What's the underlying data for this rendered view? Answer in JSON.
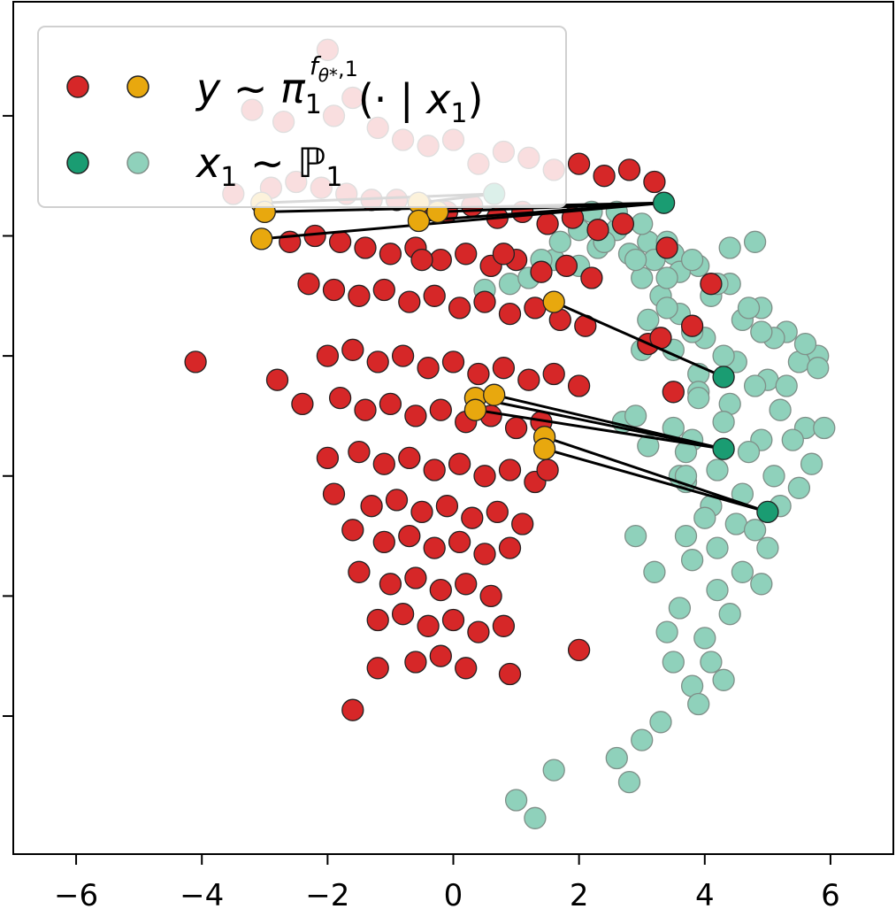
{
  "chart_data": {
    "type": "scatter",
    "title": "",
    "xlabel": "",
    "ylabel": "",
    "xlim": [
      -7,
      7
    ],
    "ylim": [
      -7.3,
      6.9
    ],
    "xticks": [
      -6,
      -4,
      -2,
      0,
      2,
      4,
      6
    ],
    "xtick_labels": [
      "−6",
      "−4",
      "−2",
      "0",
      "2",
      "4",
      "6"
    ],
    "yticks": [
      5,
      3,
      1,
      -1,
      -3,
      -5
    ],
    "ytick_labels": [
      "",
      "",
      "",
      "",
      "",
      ""
    ],
    "grid": false,
    "legend_position": "top-left",
    "legend": [
      {
        "label": "y ~ π₁^{fθ*,1}(· | x₁)",
        "colors": [
          "#d62728",
          "#e8a80e"
        ]
      },
      {
        "label": "x₁ ~ ℙ1",
        "colors": [
          "#1a9c72",
          "#8fd1bb"
        ]
      }
    ],
    "colors": {
      "target_red": "#d62728",
      "target_highlight": "#e8a80e",
      "source_highlight": "#1a9c72",
      "source_light": "#8fd1bb",
      "edge_dark": "#222222",
      "edge_light": "#7f8f88"
    },
    "series": [
      {
        "name": "x₁ ~ ℙ1",
        "role": "source",
        "x": [
          1.9,
          1.6,
          2.3,
          2.2,
          2.6,
          3.1,
          3.5,
          3.9,
          4.4,
          4.9,
          5.3,
          5.8,
          4.6,
          4.1,
          3.6,
          3.2,
          2.8,
          2.4,
          2.0,
          2.6,
          3.0,
          3.4,
          3.8,
          4.2,
          4.7,
          5.1,
          5.5,
          5.0,
          4.5,
          4.0,
          3.6,
          3.3,
          3.0,
          3.4,
          3.8,
          4.3,
          4.8,
          5.2,
          5.6,
          4.9,
          4.4,
          3.9,
          3.5,
          3.9,
          4.3,
          4.7,
          5.1,
          4.6,
          4.2,
          3.8,
          4.5,
          5.0,
          4.1,
          3.7,
          4.6,
          4.2,
          3.8,
          4.4,
          4.0,
          3.6,
          4.1,
          3.8,
          3.5,
          3.9,
          4.3,
          3.4,
          3.2,
          2.9,
          3.7,
          4.0,
          3.6,
          3.1,
          2.7,
          3.5,
          3.9,
          2.4,
          2.0,
          1.7,
          1.4,
          0.5,
          0.9,
          1.2,
          2.9,
          3.1,
          4.4,
          4.8,
          5.6,
          5.3,
          4.9,
          3.4,
          3.0,
          2.9,
          3.7,
          4.2,
          3.3,
          3.0,
          2.6,
          2.8,
          1.6,
          1.0,
          1.3,
          5.8,
          5.9,
          5.4,
          5.7,
          5.5,
          5.2,
          4.8,
          3.7,
          4.9
        ],
        "y": [
          3.3,
          2.6,
          2.8,
          3.4,
          3.1,
          2.9,
          2.7,
          2.5,
          2.2,
          1.8,
          1.4,
          1.0,
          1.6,
          2.0,
          2.4,
          2.6,
          2.7,
          2.9,
          3.1,
          3.4,
          3.2,
          2.9,
          2.6,
          2.2,
          1.8,
          1.3,
          0.9,
          0.6,
          0.9,
          1.3,
          1.7,
          2.0,
          2.3,
          1.8,
          1.4,
          1.0,
          0.5,
          0.1,
          -0.2,
          -0.4,
          0.2,
          0.7,
          1.1,
          0.4,
          -0.1,
          -0.6,
          -1.0,
          -1.3,
          -0.9,
          -0.4,
          -1.8,
          -2.2,
          -1.5,
          -1.1,
          -2.6,
          -2.9,
          -2.4,
          -3.3,
          -3.7,
          -3.2,
          -4.1,
          -4.5,
          -4.1,
          -4.8,
          -4.4,
          -3.6,
          -2.6,
          -2.0,
          -2.0,
          -1.7,
          -1.0,
          -0.5,
          -0.1,
          -0.2,
          0.3,
          2.9,
          2.5,
          2.9,
          2.6,
          2.1,
          2.2,
          2.3,
          2.6,
          1.6,
          2.8,
          2.9,
          1.2,
          0.5,
          1.4,
          2.3,
          1.1,
          0.0,
          -0.6,
          -2.2,
          -5.1,
          -5.4,
          -5.7,
          -6.1,
          -5.9,
          -6.4,
          -6.7,
          0.8,
          -0.2,
          -0.4,
          -0.8,
          -1.2,
          -1.5,
          -1.9,
          -1.0,
          -2.8
        ]
      },
      {
        "name": "y ~ π₁^{fθ*,1}(· | x₁)",
        "role": "target",
        "x": [
          -2.0,
          -1.6,
          -3.2,
          -1.9,
          -2.7,
          -1.2,
          -0.8,
          -0.4,
          0.0,
          0.4,
          0.8,
          1.2,
          1.6,
          2.0,
          2.4,
          2.8,
          3.2,
          -3.5,
          -2.9,
          -2.5,
          -2.1,
          -1.7,
          -1.3,
          -0.9,
          -0.5,
          -0.1,
          0.3,
          0.7,
          1.1,
          1.5,
          1.9,
          2.3,
          2.7,
          -2.6,
          -2.2,
          -1.8,
          -1.4,
          -1.0,
          -0.6,
          -0.2,
          0.2,
          0.6,
          1.0,
          1.4,
          1.8,
          2.2,
          -2.3,
          -1.9,
          -1.5,
          -1.1,
          -0.7,
          -0.3,
          0.1,
          0.5,
          0.9,
          1.3,
          1.7,
          2.1,
          -2.0,
          -1.6,
          -1.2,
          -0.8,
          -0.4,
          0.0,
          0.4,
          0.8,
          1.2,
          1.6,
          2.0,
          -2.4,
          -1.8,
          -1.4,
          -1.0,
          -0.6,
          -0.2,
          0.2,
          0.6,
          1.0,
          1.4,
          -2.0,
          -1.5,
          -1.1,
          -0.7,
          -0.3,
          0.1,
          0.5,
          0.9,
          1.3,
          -1.9,
          -1.3,
          -0.9,
          -0.5,
          -0.1,
          0.3,
          0.7,
          1.1,
          -1.6,
          -1.1,
          -0.7,
          -0.3,
          0.1,
          0.5,
          0.9,
          -1.5,
          -1.0,
          -0.6,
          -0.2,
          0.2,
          0.6,
          -1.2,
          -0.8,
          -0.4,
          0.0,
          0.4,
          0.8,
          -0.6,
          -0.2,
          0.2,
          -4.1,
          -2.8,
          -1.6,
          -1.2,
          2.0,
          0.9,
          3.4,
          3.1,
          4.1,
          3.8,
          3.3,
          3.5,
          1.5,
          0.8,
          -0.5
        ],
        "y": [
          6.1,
          5.3,
          5.1,
          5.0,
          4.9,
          4.8,
          4.6,
          4.5,
          4.6,
          4.2,
          4.4,
          4.3,
          4.1,
          4.2,
          4.0,
          4.1,
          3.9,
          3.7,
          3.8,
          3.9,
          3.8,
          3.7,
          3.6,
          3.6,
          3.5,
          3.4,
          3.5,
          3.3,
          3.4,
          3.2,
          3.3,
          3.1,
          3.2,
          2.9,
          3.0,
          2.9,
          2.8,
          2.7,
          2.8,
          2.6,
          2.7,
          2.5,
          2.6,
          2.4,
          2.5,
          2.3,
          2.2,
          2.1,
          2.0,
          2.1,
          1.9,
          2.0,
          1.8,
          1.9,
          1.7,
          1.8,
          1.6,
          1.5,
          1.0,
          1.1,
          0.9,
          1.0,
          0.8,
          0.9,
          0.7,
          0.8,
          0.6,
          0.7,
          0.5,
          0.2,
          0.3,
          0.1,
          0.2,
          0.0,
          0.1,
          -0.1,
          0.0,
          -0.2,
          -0.1,
          -0.7,
          -0.6,
          -0.8,
          -0.7,
          -0.9,
          -0.8,
          -1.0,
          -0.9,
          -1.1,
          -1.3,
          -1.5,
          -1.4,
          -1.6,
          -1.5,
          -1.7,
          -1.6,
          -1.8,
          -1.9,
          -2.1,
          -2.0,
          -2.2,
          -2.1,
          -2.3,
          -2.2,
          -2.6,
          -2.8,
          -2.7,
          -2.9,
          -2.8,
          -3.0,
          -3.4,
          -3.3,
          -3.5,
          -3.4,
          -3.6,
          -3.5,
          -4.1,
          -4.0,
          -4.2,
          0.9,
          0.6,
          -4.9,
          -4.2,
          -3.9,
          -4.3,
          2.8,
          1.2,
          2.2,
          1.5,
          1.3,
          0.4,
          -0.9,
          2.7,
          2.6
        ]
      },
      {
        "name": "x₁ ~ ℙ1",
        "role": "source-highlight",
        "x": [
          0.65,
          3.35,
          4.3,
          4.3,
          5.0
        ],
        "y": [
          3.7,
          3.55,
          0.65,
          -0.55,
          -1.6
        ]
      },
      {
        "name": "y ~ π₁^{fθ*,1}(· | x₁)",
        "role": "target-highlight",
        "x": [
          -3.05,
          -3.0,
          -3.05,
          -0.55,
          -0.55,
          -0.25,
          1.6,
          0.35,
          0.35,
          0.65,
          1.45,
          1.45
        ],
        "y": [
          3.55,
          3.4,
          2.95,
          3.55,
          3.25,
          3.4,
          1.9,
          0.3,
          0.1,
          0.35,
          -0.35,
          -0.55
        ]
      }
    ],
    "links": [
      {
        "from": [
          0.65,
          3.7
        ],
        "to": [
          -3.05,
          3.55
        ]
      },
      {
        "from": [
          0.65,
          3.7
        ],
        "to": [
          -0.55,
          3.55
        ]
      },
      {
        "from": [
          3.35,
          3.55
        ],
        "to": [
          -3.0,
          3.4
        ]
      },
      {
        "from": [
          3.35,
          3.55
        ],
        "to": [
          -3.05,
          2.95
        ]
      },
      {
        "from": [
          3.35,
          3.55
        ],
        "to": [
          -0.55,
          3.25
        ]
      },
      {
        "from": [
          3.35,
          3.55
        ],
        "to": [
          -0.25,
          3.4
        ]
      },
      {
        "from": [
          4.3,
          0.65
        ],
        "to": [
          1.6,
          1.9
        ]
      },
      {
        "from": [
          4.3,
          -0.55
        ],
        "to": [
          0.35,
          0.3
        ]
      },
      {
        "from": [
          4.3,
          -0.55
        ],
        "to": [
          0.35,
          0.1
        ]
      },
      {
        "from": [
          4.3,
          -0.55
        ],
        "to": [
          0.65,
          0.35
        ]
      },
      {
        "from": [
          5.0,
          -1.6
        ],
        "to": [
          1.45,
          -0.35
        ]
      },
      {
        "from": [
          5.0,
          -1.6
        ],
        "to": [
          1.45,
          -0.55
        ]
      }
    ]
  }
}
